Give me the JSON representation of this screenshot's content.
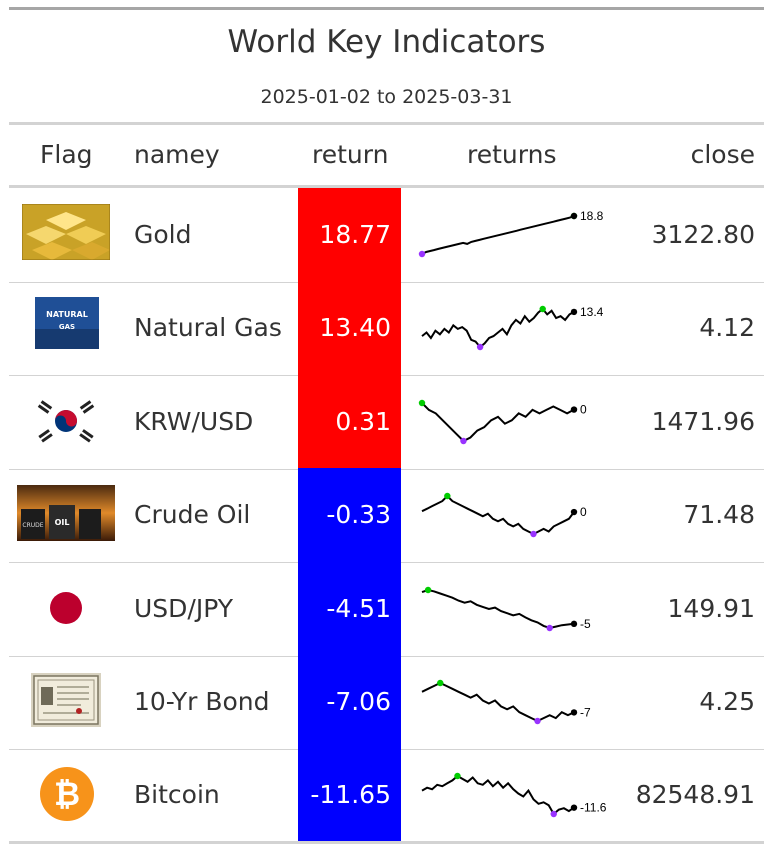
{
  "title": "World Key Indicators",
  "subtitle": "2025-01-02 to 2025-03-31",
  "headers": {
    "flag": "Flag",
    "name": "namey",
    "return": "return",
    "returns": "returns",
    "close": "close"
  },
  "colors": {
    "positive": "#ff0000",
    "negative": "#0000ff",
    "spark_line": "#000000",
    "spark_max": "#00cc00",
    "spark_min": "#9933ff"
  },
  "chart_data": {
    "type": "table",
    "columns": [
      "Flag",
      "namey",
      "return",
      "returns",
      "close"
    ],
    "rows": [
      {
        "name": "Gold",
        "flag_icon": "gold-bars-icon",
        "return": "18.77",
        "return_value": 18.77,
        "spark_label": "18.8",
        "close": "3122.80",
        "min_pos": 0.0,
        "max_pos": 1.0,
        "spark": [
          0,
          1,
          1.5,
          2,
          2.5,
          3,
          3.5,
          4,
          4.5,
          5,
          5.5,
          5,
          6,
          6.5,
          7,
          7.5,
          8,
          8.5,
          9,
          9.5,
          10,
          10.5,
          11,
          11.5,
          12,
          12.5,
          13,
          13.5,
          14,
          14.5,
          15,
          15.5,
          16,
          16.5,
          17,
          17.5,
          18,
          18.8
        ]
      },
      {
        "name": "Natural Gas",
        "flag_icon": "natural-gas-icon",
        "return": "13.40",
        "return_value": 13.4,
        "spark_label": "13.4",
        "close": "4.12",
        "min_pos": 0.35,
        "max_pos": 0.77,
        "spark": [
          0,
          2,
          -1,
          3,
          1,
          4,
          2,
          6,
          4,
          5,
          3,
          -2,
          -3,
          -6,
          -4,
          -1,
          0,
          2,
          4,
          1,
          6,
          9,
          7,
          11,
          8,
          10,
          13,
          15,
          12,
          14,
          10,
          11,
          9,
          12,
          13.4
        ]
      },
      {
        "name": "KRW/USD",
        "flag_icon": "korea-flag-icon",
        "return": "0.31",
        "return_value": 0.31,
        "spark_label": "0",
        "close": "1471.96",
        "min_pos": 0.28,
        "max_pos": 0.0,
        "spark": [
          0.5,
          0.3,
          0.2,
          0.0,
          -0.2,
          -0.4,
          -0.6,
          -0.5,
          -0.3,
          -0.2,
          0.0,
          0.1,
          -0.1,
          0.0,
          0.2,
          0.1,
          0.3,
          0.2,
          0.3,
          0.4,
          0.3,
          0.2,
          0.31
        ]
      },
      {
        "name": "Crude Oil",
        "flag_icon": "oil-barrels-icon",
        "return": "-0.33",
        "return_value": -0.33,
        "spark_label": "0",
        "close": "71.48",
        "min_pos": 0.78,
        "max_pos": 0.17,
        "spark": [
          0,
          1,
          2,
          3,
          4,
          6,
          4,
          3,
          2,
          1,
          0,
          -1,
          -2,
          -1,
          -3,
          -4,
          -3,
          -5,
          -6,
          -5,
          -7,
          -8,
          -9,
          -8,
          -7,
          -8,
          -6,
          -5,
          -4,
          -3,
          -0.33
        ]
      },
      {
        "name": "USD/JPY",
        "flag_icon": "japan-flag-icon",
        "return": "-4.51",
        "return_value": -4.51,
        "spark_label": "-5",
        "close": "149.91",
        "min_pos": 0.78,
        "max_pos": 0.03,
        "spark": [
          0,
          0.3,
          0.1,
          -0.2,
          -0.5,
          -0.8,
          -1.2,
          -1.5,
          -1.3,
          -1.8,
          -2.1,
          -2.4,
          -2.2,
          -2.7,
          -3.0,
          -3.3,
          -3.1,
          -3.6,
          -4.0,
          -4.3,
          -4.8,
          -5.1,
          -4.9,
          -4.7,
          -4.6,
          -4.51
        ]
      },
      {
        "name": "10-Yr Bond",
        "flag_icon": "bond-certificate-icon",
        "return": "-7.06",
        "return_value": -7.06,
        "spark_label": "-7",
        "close": "4.25",
        "min_pos": 0.68,
        "max_pos": 0.1,
        "spark": [
          0,
          1,
          2,
          3,
          2,
          1,
          0,
          -1,
          -2,
          -1,
          -3,
          -4,
          -3,
          -5,
          -6,
          -5,
          -7,
          -8,
          -9,
          -10,
          -9,
          -8,
          -9,
          -7,
          -8,
          -7.06
        ]
      },
      {
        "name": "Bitcoin",
        "flag_icon": "bitcoin-icon",
        "return": "-11.65",
        "return_value": -11.65,
        "spark_label": "-11.6",
        "close": "82548.91",
        "min_pos": 0.77,
        "max_pos": 0.25,
        "spark": [
          0,
          2,
          1,
          4,
          3,
          5,
          7,
          10,
          8,
          6,
          9,
          5,
          4,
          7,
          3,
          6,
          2,
          5,
          1,
          -2,
          -4,
          0,
          -6,
          -9,
          -8,
          -10,
          -16,
          -13,
          -12,
          -14,
          -11.65
        ]
      }
    ]
  }
}
